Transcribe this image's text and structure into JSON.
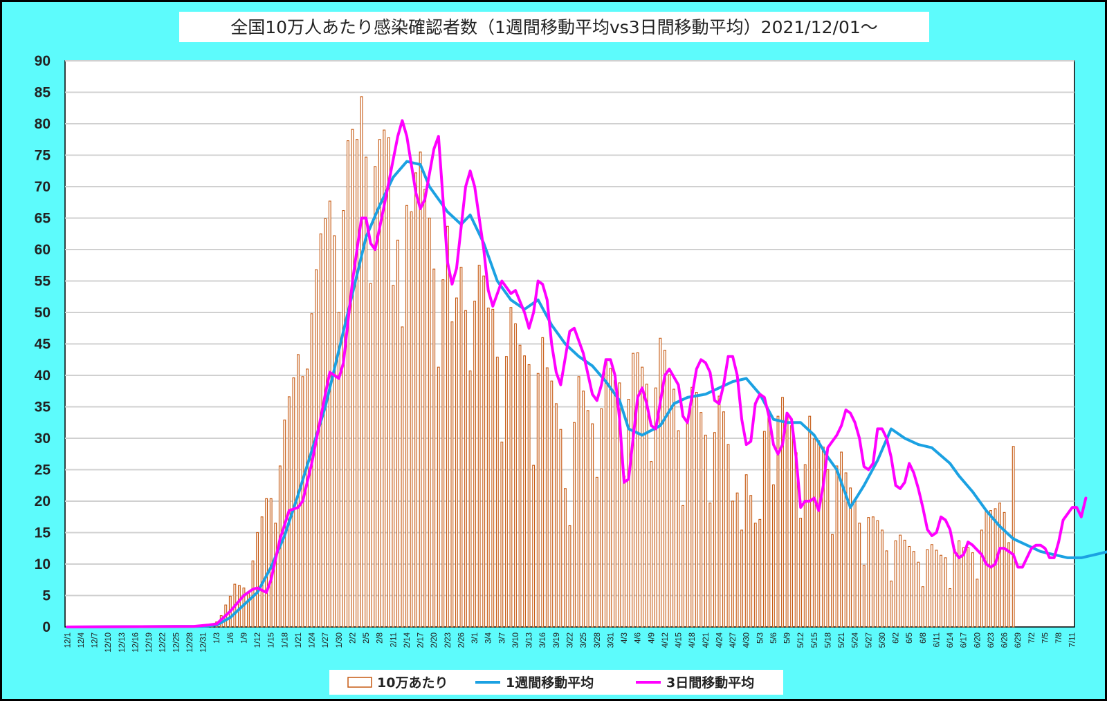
{
  "chart_data": {
    "type": "bar",
    "title": "全国10万人あたり感染確認者数（1週間移動平均vs3日間移動平均）2021/12/01～",
    "start_date": "12/1",
    "x_tick_labels": [
      "12/1",
      "12/4",
      "12/7",
      "12/10",
      "12/13",
      "12/16",
      "12/19",
      "12/22",
      "12/25",
      "12/28",
      "12/31",
      "1/3",
      "1/6",
      "1/9",
      "1/12",
      "1/15",
      "1/18",
      "1/21",
      "1/24",
      "1/27",
      "1/30",
      "2/2",
      "2/5",
      "2/8",
      "2/11",
      "2/14",
      "2/17",
      "2/20",
      "2/23",
      "2/26",
      "3/1",
      "3/4",
      "3/7",
      "3/10",
      "3/13",
      "3/16",
      "3/19",
      "3/22",
      "3/25",
      "3/28",
      "3/31",
      "4/3",
      "4/6",
      "4/9",
      "4/12",
      "4/15",
      "4/18",
      "4/21",
      "4/24",
      "4/27",
      "4/30",
      "5/3",
      "5/6",
      "5/9",
      "5/12",
      "5/15",
      "5/18",
      "5/21",
      "5/24",
      "5/27",
      "5/30",
      "6/2",
      "6/5",
      "6/8",
      "6/11",
      "6/14",
      "6/17",
      "6/20",
      "6/23",
      "6/26",
      "6/29",
      "7/2",
      "7/5",
      "7/8",
      "7/11"
    ],
    "y_ticks": [
      0,
      5,
      10,
      15,
      20,
      25,
      30,
      35,
      40,
      45,
      50,
      55,
      60,
      65,
      70,
      75,
      80,
      85,
      90
    ],
    "ylim": [
      0,
      90
    ],
    "grid": true,
    "legend_position": "bottom",
    "series": [
      {
        "name": "10万あたり",
        "type": "bar",
        "color": "#c65911",
        "values": [
          0,
          0,
          0,
          0,
          0,
          0,
          0,
          0,
          0,
          0,
          0,
          0,
          0,
          0,
          0,
          0,
          0,
          0,
          0,
          0,
          0,
          0.1,
          0.1,
          0.1,
          0.1,
          0.1,
          0.1,
          0.1,
          0.2,
          0.2,
          0.3,
          0.3,
          0.4,
          0.8,
          1.8,
          3.5,
          4.9,
          6.8,
          6.6,
          6.2,
          5.6,
          10.5,
          15,
          17.5,
          20.4,
          20.4,
          16.5,
          25.6,
          32.9,
          36.6,
          39.6,
          43.3,
          39.8,
          41,
          49.8,
          56.8,
          62.5,
          64.9,
          67.7,
          62.2,
          50,
          66.2,
          77.3,
          79.1,
          77.5,
          84.3,
          74.7,
          54.6,
          73.2,
          77.5,
          79,
          77.8,
          54.3,
          61.5,
          47.7,
          67,
          66,
          72.2,
          75.5,
          69.6,
          65,
          56.9,
          41.3,
          55.2,
          63.7,
          48.5,
          52.3,
          57.2,
          50.3,
          40.7,
          51.8,
          57.5,
          55.8,
          50.7,
          50.5,
          42.9,
          29.4,
          43,
          50.8,
          48.2,
          44.8,
          43.1,
          41.7,
          25.7,
          40.3,
          46,
          41.2,
          39.1,
          35.5,
          31.4,
          22,
          16.1,
          32.5,
          39.8,
          37.5,
          34.4,
          32.3,
          23.8,
          34.7,
          42.6,
          41.1,
          39.2,
          38.8,
          24,
          36.2,
          43.5,
          43.6,
          41.3,
          38.6,
          26.3,
          38,
          45.9,
          44,
          40.1,
          37.8,
          31.2,
          19.3,
          32.3,
          38.1,
          37.3,
          34.1,
          30.5,
          19.7,
          30.9,
          36.7,
          34.2,
          29,
          20,
          21.3,
          15.4,
          24.2,
          20.9,
          16.5,
          17.1,
          31.1,
          33.7,
          22.6,
          33.5,
          36.5,
          33.3,
          32,
          27.7,
          17.3,
          25.8,
          33.5,
          29.9,
          29.6,
          28.6,
          25,
          14.7,
          25.6,
          27.8,
          24.5,
          22.1,
          20.3,
          16.5,
          9.8,
          17.4,
          17.5,
          16.9,
          15.4,
          12.1,
          7.3,
          13.7,
          14.6,
          13.8,
          12.8,
          12,
          10.3,
          6.4,
          12.3,
          13.1,
          12.2,
          11.4,
          11,
          6.1,
          12.3,
          13.7,
          12.6,
          12.6,
          11.8,
          7.6,
          15.4,
          18.5,
          18.5,
          18.8,
          19.7,
          18.2,
          13.4,
          28.7
        ]
      },
      {
        "name": "1週間移動平均",
        "type": "line",
        "color": "#1ba1e2",
        "points": [
          [
            0,
            0
          ],
          [
            30,
            0.1
          ],
          [
            33,
            0.3
          ],
          [
            36,
            1.5
          ],
          [
            39,
            3.5
          ],
          [
            42,
            5.5
          ],
          [
            45,
            9.5
          ],
          [
            48,
            14.5
          ],
          [
            51,
            21
          ],
          [
            54,
            28
          ],
          [
            57,
            35
          ],
          [
            60,
            44
          ],
          [
            63,
            53
          ],
          [
            66,
            62
          ],
          [
            69,
            67
          ],
          [
            72,
            71.5
          ],
          [
            75,
            74
          ],
          [
            78,
            73.5
          ],
          [
            80,
            70
          ],
          [
            84,
            66
          ],
          [
            87,
            64
          ],
          [
            89,
            65.5
          ],
          [
            92,
            61
          ],
          [
            95,
            55
          ],
          [
            98,
            52
          ],
          [
            101,
            50.5
          ],
          [
            104,
            52
          ],
          [
            107,
            48
          ],
          [
            110,
            45
          ],
          [
            113,
            43
          ],
          [
            116,
            41.5
          ],
          [
            119,
            39
          ],
          [
            122,
            36
          ],
          [
            124,
            31.5
          ],
          [
            127,
            30.5
          ],
          [
            131,
            32
          ],
          [
            134,
            35.5
          ],
          [
            137,
            36.5
          ],
          [
            141,
            37
          ],
          [
            144,
            38
          ],
          [
            147,
            39
          ],
          [
            150,
            39.5
          ],
          [
            153,
            37
          ],
          [
            156,
            33
          ],
          [
            159,
            32.5
          ],
          [
            162,
            32.5
          ],
          [
            165,
            30.5
          ],
          [
            168,
            27
          ],
          [
            170,
            25
          ],
          [
            173,
            19
          ],
          [
            176,
            22.5
          ],
          [
            179,
            26.5
          ],
          [
            182,
            31.5
          ],
          [
            185,
            30
          ],
          [
            188,
            29
          ],
          [
            191,
            28.5
          ],
          [
            195,
            26
          ],
          [
            197,
            24
          ],
          [
            200,
            21.5
          ],
          [
            203,
            18.5
          ],
          [
            206,
            16
          ],
          [
            209,
            14
          ],
          [
            212,
            13
          ],
          [
            215,
            12
          ],
          [
            218,
            11.5
          ],
          [
            221,
            11
          ],
          [
            224,
            11
          ],
          [
            227,
            11.5
          ],
          [
            230,
            12
          ],
          [
            233,
            13.5
          ],
          [
            236,
            15.5
          ],
          [
            239,
            17
          ],
          [
            242,
            19
          ]
        ]
      },
      {
        "name": "3日間移動平均",
        "type": "line",
        "color": "#ff00ff",
        "points": [
          [
            0,
            0
          ],
          [
            28,
            0.1
          ],
          [
            31,
            0.3
          ],
          [
            33,
            0.5
          ],
          [
            36,
            2.5
          ],
          [
            39,
            5
          ],
          [
            41,
            6
          ],
          [
            42,
            6.2
          ],
          [
            44,
            5.5
          ],
          [
            45,
            7.5
          ],
          [
            47,
            14
          ],
          [
            49,
            18.5
          ],
          [
            51,
            19
          ],
          [
            52,
            20
          ],
          [
            54,
            26
          ],
          [
            57,
            37
          ],
          [
            58,
            40.5
          ],
          [
            60,
            39.5
          ],
          [
            61,
            42
          ],
          [
            63,
            55
          ],
          [
            65,
            65
          ],
          [
            66,
            65
          ],
          [
            67,
            61
          ],
          [
            68,
            60
          ],
          [
            70,
            67
          ],
          [
            73,
            78
          ],
          [
            74,
            80.5
          ],
          [
            75,
            78
          ],
          [
            77,
            69
          ],
          [
            78,
            66.5
          ],
          [
            79,
            68
          ],
          [
            81,
            76
          ],
          [
            82,
            78
          ],
          [
            83,
            68
          ],
          [
            84,
            58
          ],
          [
            85,
            54.5
          ],
          [
            86,
            57
          ],
          [
            88,
            70
          ],
          [
            89,
            72.5
          ],
          [
            90,
            70
          ],
          [
            92,
            60
          ],
          [
            93,
            53.5
          ],
          [
            94,
            51
          ],
          [
            96,
            55
          ],
          [
            98,
            53
          ],
          [
            99,
            53.5
          ],
          [
            101,
            50
          ],
          [
            102,
            47.5
          ],
          [
            103,
            50
          ],
          [
            104,
            55
          ],
          [
            105,
            54.5
          ],
          [
            106,
            52
          ],
          [
            107,
            45
          ],
          [
            108,
            40.5
          ],
          [
            109,
            38.5
          ],
          [
            111,
            47
          ],
          [
            112,
            47.5
          ],
          [
            114,
            43.5
          ],
          [
            116,
            37
          ],
          [
            117,
            36
          ],
          [
            118,
            38.5
          ],
          [
            119,
            42.5
          ],
          [
            120,
            42.5
          ],
          [
            121,
            40
          ],
          [
            122,
            33
          ],
          [
            123,
            23
          ],
          [
            124,
            23.5
          ],
          [
            125,
            30
          ],
          [
            126,
            36.5
          ],
          [
            127,
            38
          ],
          [
            128,
            35.5
          ],
          [
            129,
            32
          ],
          [
            130,
            31.5
          ],
          [
            132,
            40
          ],
          [
            133,
            41
          ],
          [
            135,
            38.5
          ],
          [
            136,
            33.5
          ],
          [
            137,
            32.5
          ],
          [
            139,
            41
          ],
          [
            140,
            42.5
          ],
          [
            141,
            42
          ],
          [
            142,
            40.5
          ],
          [
            143,
            36
          ],
          [
            144,
            35.5
          ],
          [
            145,
            38.5
          ],
          [
            146,
            43
          ],
          [
            147,
            43
          ],
          [
            148,
            40
          ],
          [
            149,
            33
          ],
          [
            150,
            29
          ],
          [
            151,
            29.5
          ],
          [
            152,
            35.5
          ],
          [
            153,
            37
          ],
          [
            154,
            36.5
          ],
          [
            155,
            33.5
          ],
          [
            156,
            29
          ],
          [
            157,
            27.5
          ],
          [
            158,
            29
          ],
          [
            159,
            34
          ],
          [
            160,
            33
          ],
          [
            161,
            27
          ],
          [
            162,
            19
          ],
          [
            163,
            20
          ],
          [
            164,
            20
          ],
          [
            165,
            20.5
          ],
          [
            166,
            18.5
          ],
          [
            167,
            22.5
          ],
          [
            168,
            28.5
          ],
          [
            170,
            30.5
          ],
          [
            171,
            32
          ],
          [
            172,
            34.5
          ],
          [
            173,
            34
          ],
          [
            174,
            32.5
          ],
          [
            175,
            30
          ],
          [
            176,
            25.5
          ],
          [
            177,
            25
          ],
          [
            178,
            26
          ],
          [
            179,
            31.5
          ],
          [
            180,
            31.5
          ],
          [
            181,
            30
          ],
          [
            182,
            27
          ],
          [
            183,
            22.5
          ],
          [
            184,
            22
          ],
          [
            185,
            23
          ],
          [
            186,
            26
          ],
          [
            187,
            24.5
          ],
          [
            188,
            22
          ],
          [
            189,
            19
          ],
          [
            190,
            15.5
          ],
          [
            191,
            14.5
          ],
          [
            192,
            15
          ],
          [
            193,
            17.5
          ],
          [
            194,
            17
          ],
          [
            195,
            15.5
          ],
          [
            196,
            12
          ],
          [
            197,
            11
          ],
          [
            198,
            11.5
          ],
          [
            199,
            13.5
          ],
          [
            200,
            13
          ],
          [
            202,
            11.5
          ],
          [
            203,
            10
          ],
          [
            204,
            9.5
          ],
          [
            205,
            10
          ],
          [
            206,
            12.5
          ],
          [
            207,
            12.5
          ],
          [
            208,
            12
          ],
          [
            209,
            11.5
          ],
          [
            210,
            9.5
          ],
          [
            211,
            9.5
          ],
          [
            212,
            11
          ],
          [
            213,
            12.5
          ],
          [
            214,
            13
          ],
          [
            215,
            13
          ],
          [
            216,
            12.5
          ],
          [
            217,
            11
          ],
          [
            218,
            11
          ],
          [
            219,
            13.5
          ],
          [
            220,
            17
          ],
          [
            221,
            18
          ],
          [
            222,
            19
          ],
          [
            223,
            19
          ],
          [
            224,
            17.5
          ],
          [
            225,
            20.5
          ]
        ]
      }
    ]
  }
}
